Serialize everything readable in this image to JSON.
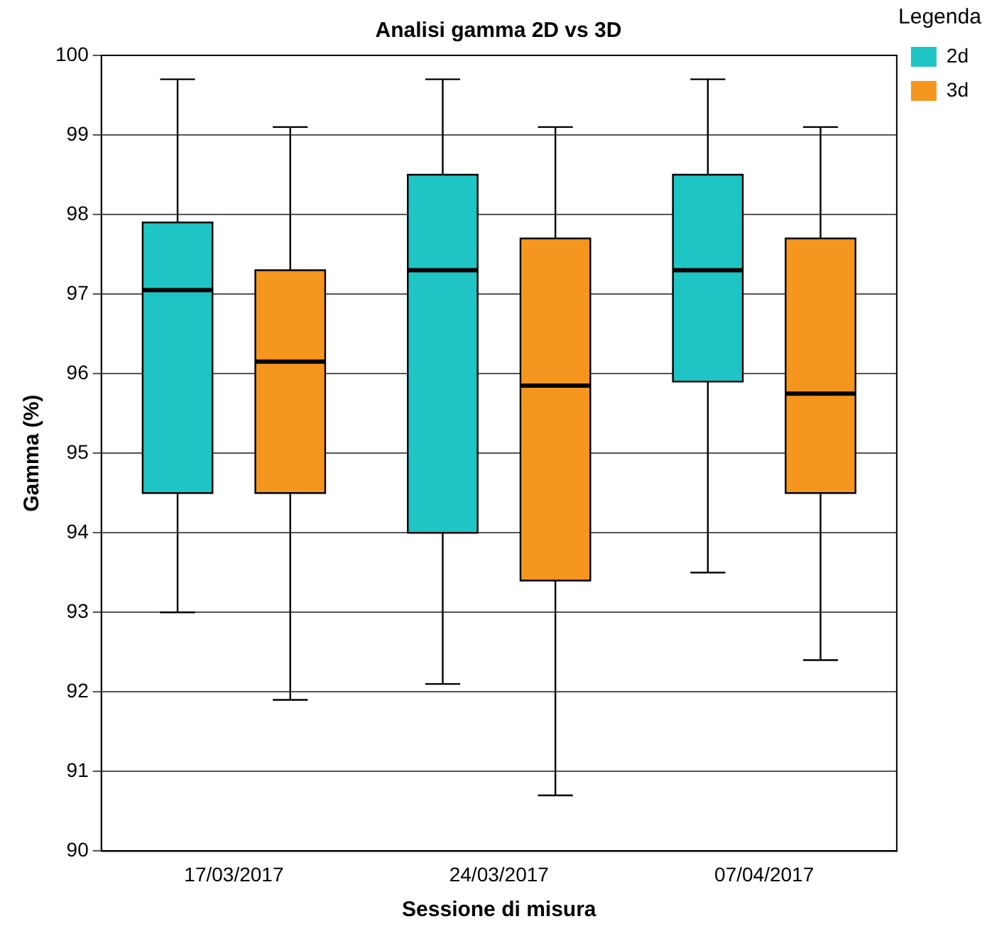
{
  "chart_data": {
    "type": "box",
    "title": "Analisi gamma 2D vs 3D",
    "xlabel": "Sessione di misura",
    "ylabel": "Gamma (%)",
    "legend_title": "Legenda",
    "categories": [
      "17/03/2017",
      "24/03/2017",
      "07/04/2017"
    ],
    "series": [
      {
        "name": "2d",
        "color": "#1fc4c4",
        "boxes": [
          {
            "low": 93.0,
            "q1": 94.5,
            "median": 97.05,
            "q3": 97.9,
            "high": 99.7
          },
          {
            "low": 92.1,
            "q1": 94.0,
            "median": 97.3,
            "q3": 98.5,
            "high": 99.7
          },
          {
            "low": 93.5,
            "q1": 95.9,
            "median": 97.3,
            "q3": 98.5,
            "high": 99.7
          }
        ]
      },
      {
        "name": "3d",
        "color": "#f5961e",
        "boxes": [
          {
            "low": 91.9,
            "q1": 94.5,
            "median": 96.15,
            "q3": 97.3,
            "high": 99.1
          },
          {
            "low": 90.7,
            "q1": 93.4,
            "median": 95.85,
            "q3": 97.7,
            "high": 99.1
          },
          {
            "low": 92.4,
            "q1": 94.5,
            "median": 95.75,
            "q3": 97.7,
            "high": 99.1
          }
        ]
      }
    ],
    "ylim": [
      90,
      100
    ],
    "yticks": [
      90,
      91,
      92,
      93,
      94,
      95,
      96,
      97,
      98,
      99,
      100
    ],
    "grid": "y",
    "legend": "top right"
  }
}
